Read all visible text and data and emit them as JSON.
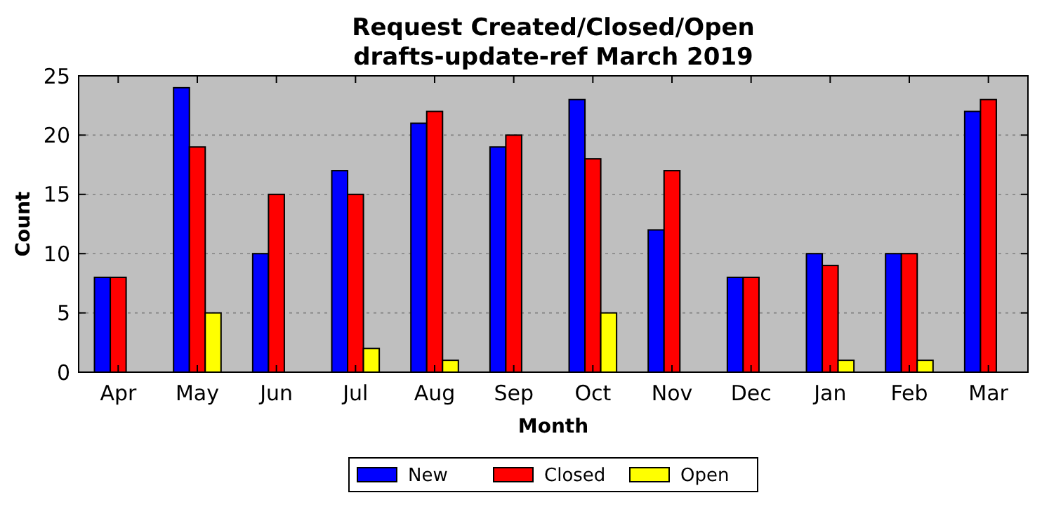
{
  "chart_data": {
    "type": "bar",
    "title": "Request Created/Closed/Open\ndrafts-update-ref March 2019",
    "xlabel": "Month",
    "ylabel": "Count",
    "categories": [
      "Apr",
      "May",
      "Jun",
      "Jul",
      "Aug",
      "Sep",
      "Oct",
      "Nov",
      "Dec",
      "Jan",
      "Feb",
      "Mar"
    ],
    "series": [
      {
        "name": "New",
        "color": "#0000ff",
        "values": [
          8,
          24,
          10,
          17,
          21,
          19,
          23,
          12,
          8,
          10,
          10,
          22
        ]
      },
      {
        "name": "Closed",
        "color": "#ff0000",
        "values": [
          8,
          19,
          15,
          15,
          22,
          20,
          18,
          17,
          8,
          9,
          10,
          23
        ]
      },
      {
        "name": "Open",
        "color": "#ffff00",
        "values": [
          0,
          5,
          0,
          2,
          1,
          0,
          5,
          0,
          0,
          1,
          1,
          0
        ]
      }
    ],
    "ylim": [
      0,
      25
    ],
    "yticks": [
      0,
      5,
      10,
      15,
      20,
      25
    ],
    "grid": "y",
    "legend": "bottom"
  }
}
